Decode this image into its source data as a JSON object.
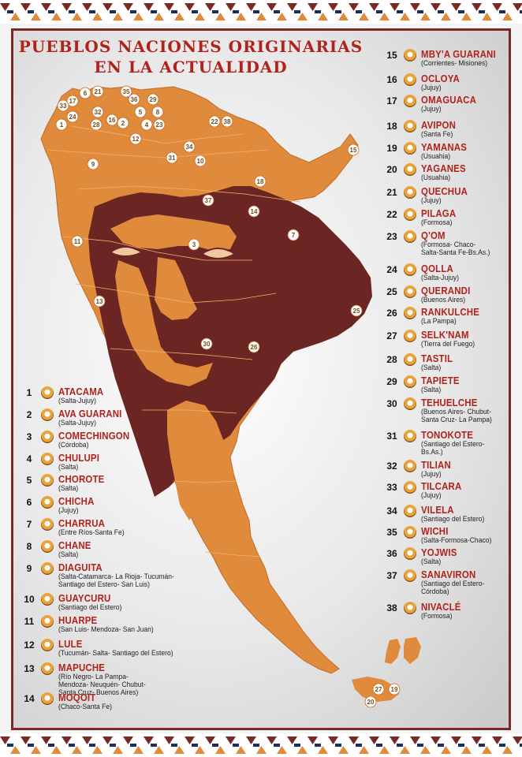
{
  "title": {
    "line1": "PUEBLOS NACIONES ORIGINARIAS",
    "line2": "EN LA ACTUALIDAD"
  },
  "colors": {
    "background": "#f4f4f4",
    "frame": "#7a2a25",
    "map_orange": "#e08a3c",
    "map_dark": "#6b2522",
    "title_red": "#b0231d"
  },
  "legend": [
    {
      "number": "1",
      "name": "ATACAMA",
      "region": "(Salta-Jujuy)"
    },
    {
      "number": "2",
      "name": "AVA GUARANI",
      "region": "(Salta-Jujuy)"
    },
    {
      "number": "3",
      "name": "COMECHINGON",
      "region": "(Córdoba)"
    },
    {
      "number": "4",
      "name": "CHULUPI",
      "region": "(Salta)"
    },
    {
      "number": "5",
      "name": "CHOROTE",
      "region": "(Salta)"
    },
    {
      "number": "6",
      "name": "CHICHA",
      "region": "(Jujuy)"
    },
    {
      "number": "7",
      "name": "CHARRUA",
      "region": "(Entre Ríos-Santa Fe)"
    },
    {
      "number": "8",
      "name": "CHANE",
      "region": "(Salta)"
    },
    {
      "number": "9",
      "name": "DIAGUITA",
      "region": "(Salta-Catamarca- La Rioja- Tucumán-\nSantiago del Estero- San Luis)"
    },
    {
      "number": "10",
      "name": "GUAYCURU",
      "region": "(Santiago del Estero)"
    },
    {
      "number": "11",
      "name": "HUARPE",
      "region": "(San Luis- Mendoza- San Juan)"
    },
    {
      "number": "12",
      "name": "LULE",
      "region": "(Tucumán- Salta- Santiago del Estero)"
    },
    {
      "number": "13",
      "name": "MAPUCHE",
      "region": "(Río Negro- La Pampa-\nMendoza- Neuquén- Chubut-\nSanta Cruz- Buenos Aires)"
    },
    {
      "number": "14",
      "name": "MOQOIT",
      "region": "(Chaco-Santa Fe)"
    },
    {
      "number": "15",
      "name": "MBY'A GUARANI",
      "region": "(Corrientes- Misiones)"
    },
    {
      "number": "16",
      "name": "OCLOYA",
      "region": "(Jujuy)"
    },
    {
      "number": "17",
      "name": "OMAGUACA",
      "region": "(Jujuy)"
    },
    {
      "number": "18",
      "name": "AVIPON",
      "region": "(Santa Fe)"
    },
    {
      "number": "19",
      "name": "YAMANAS",
      "region": "(Usuahia)"
    },
    {
      "number": "20",
      "name": "YAGANES",
      "region": "(Usuahia)"
    },
    {
      "number": "21",
      "name": "QUECHUA",
      "region": "(Jujuy)"
    },
    {
      "number": "22",
      "name": "PILAGA",
      "region": "(Formosa)"
    },
    {
      "number": "23",
      "name": "Q'OM",
      "region": "(Formosa- Chaco-\nSalta-Santa Fe-Bs.As.)"
    },
    {
      "number": "24",
      "name": "QOLLA",
      "region": "(Salta-Jujuy)"
    },
    {
      "number": "25",
      "name": "QUERANDI",
      "region": "(Buenos Aires)"
    },
    {
      "number": "26",
      "name": "RANKULCHE",
      "region": "(La Pampa)"
    },
    {
      "number": "27",
      "name": "SELK'NAM",
      "region": "(Tierra del Fuego)"
    },
    {
      "number": "28",
      "name": "TASTIL",
      "region": "(Salta)"
    },
    {
      "number": "29",
      "name": "TAPIETE",
      "region": "(Salta)"
    },
    {
      "number": "30",
      "name": "TEHUELCHE",
      "region": "(Buenos Aires- Chubut-\nSanta Cruz- La Pampa)"
    },
    {
      "number": "31",
      "name": "TONOKOTE",
      "region": "(Santiago del Estero-\nBs.As.)"
    },
    {
      "number": "32",
      "name": "TILIAN",
      "region": "(Jujuy)"
    },
    {
      "number": "33",
      "name": "TILCARA",
      "region": "(Jujuy)"
    },
    {
      "number": "34",
      "name": "VILELA",
      "region": "(Santiago del Estero)"
    },
    {
      "number": "35",
      "name": "WICHI",
      "region": "(Salta-Formosa-Chaco)"
    },
    {
      "number": "36",
      "name": "YOJWIS",
      "region": "(Salta)"
    },
    {
      "number": "37",
      "name": "SANAVIRON",
      "region": "(Santiago del Estero-\nCórdoba)"
    },
    {
      "number": "38",
      "name": "NIVACLÉ",
      "region": "(Formosa)"
    }
  ],
  "map_markers": [
    "1",
    "17",
    "33",
    "24",
    "6",
    "21",
    "35",
    "32",
    "36",
    "29",
    "28",
    "16",
    "2",
    "5",
    "8",
    "3",
    "4",
    "23",
    "12",
    "34",
    "31",
    "10",
    "22",
    "38",
    "9",
    "37",
    "18",
    "14",
    "15",
    "7",
    "11",
    "13",
    "30",
    "26",
    "25",
    "27",
    "19",
    "20"
  ]
}
